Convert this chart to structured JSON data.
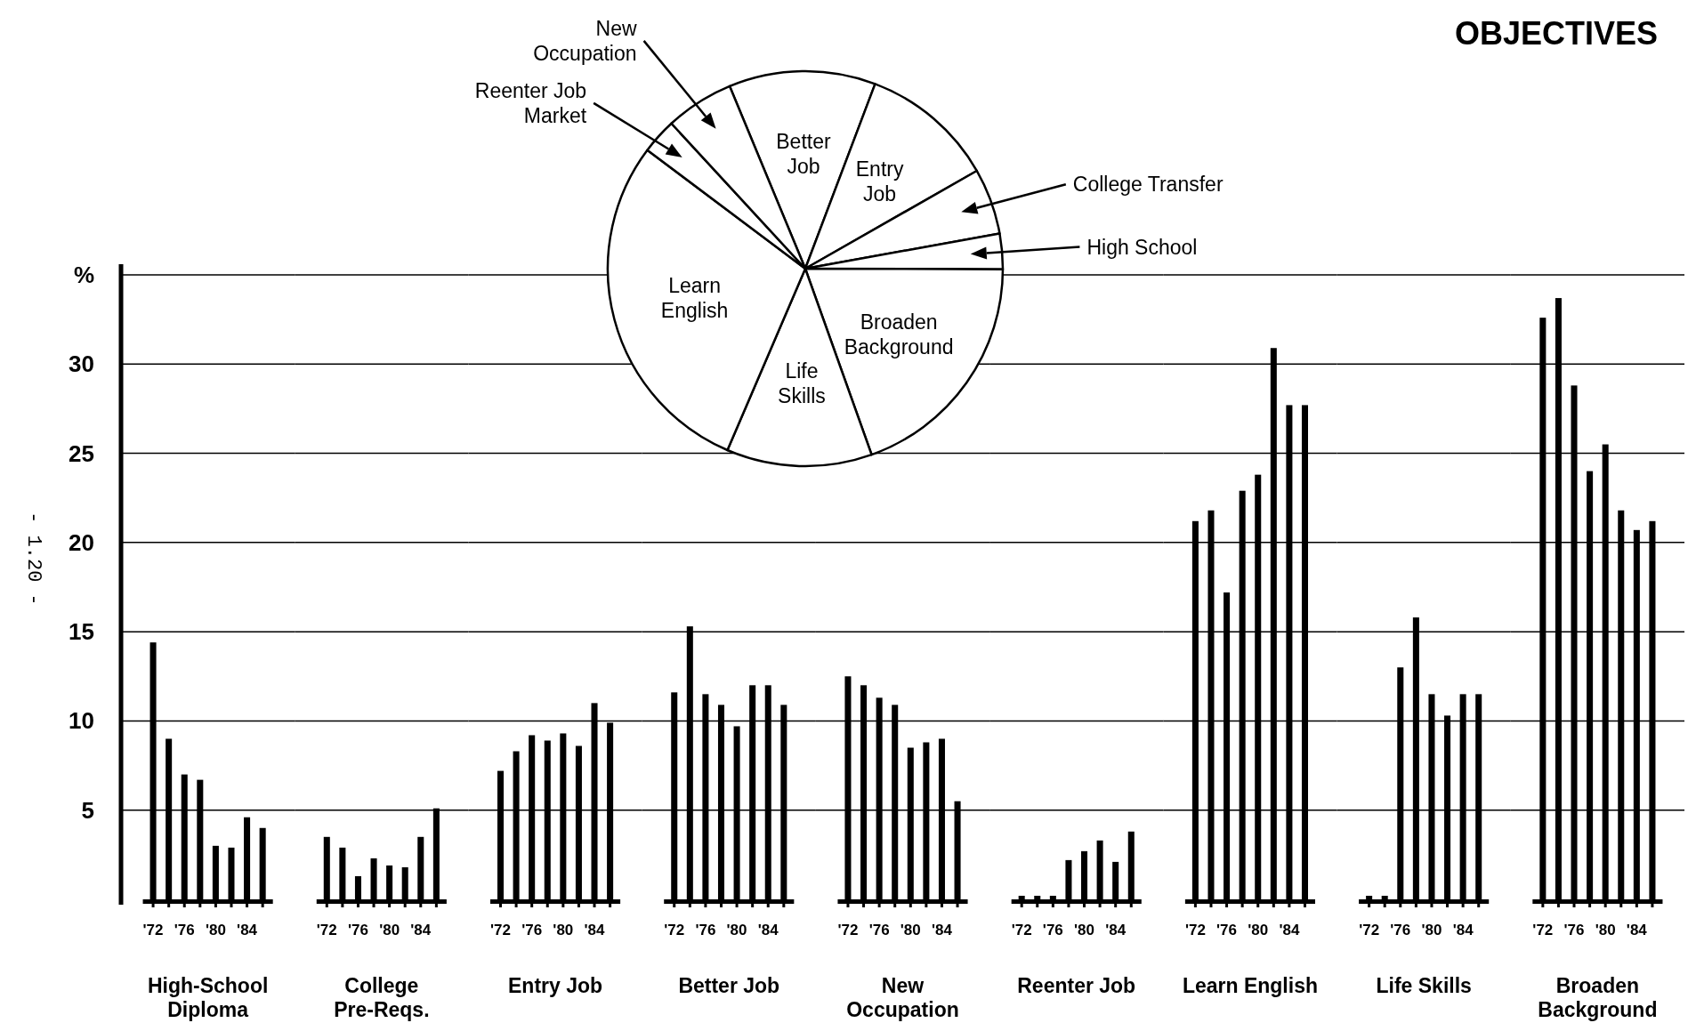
{
  "chart_data": [
    {
      "type": "pie",
      "title": "OBJECTIVES",
      "categories": [
        "Better Job",
        "Entry Job",
        "College Transfer",
        "High School",
        "Broaden Background",
        "Life Skills",
        "Learn English",
        "Reenter Job Market",
        "New Occupation"
      ],
      "values": [
        12.0,
        11.0,
        5.4,
        2.9,
        19.5,
        11.9,
        28.8,
        2.9,
        5.6
      ],
      "colors": [
        "#ffffff",
        "#ffffff",
        "#ffffff",
        "#ffffff",
        "#ffffff",
        "#ffffff",
        "#ffffff",
        "#ffffff",
        "#ffffff"
      ]
    },
    {
      "type": "bar",
      "xlabel": "High-School Diploma",
      "categories": [
        "'72",
        null,
        "'76",
        null,
        "'80",
        null,
        "'84",
        null
      ],
      "values": [
        14.4,
        9.0,
        7.0,
        6.7,
        3.0,
        2.9,
        4.6,
        4.0
      ],
      "color": "#000000",
      "ylim": [
        0,
        35
      ],
      "yticks": [
        5,
        10,
        15,
        20,
        25,
        30,
        {
          "value": 35,
          "label": "%"
        }
      ],
      "grid": "y",
      "annotations": [
        "- 1.20 -"
      ]
    },
    {
      "type": "bar",
      "xlabel": "College Pre-Reqs.",
      "categories": [
        "'72",
        null,
        "'76",
        null,
        "'80",
        null,
        "'84",
        null
      ],
      "values": [
        3.5,
        2.9,
        1.3,
        2.3,
        1.9,
        1.8,
        3.5,
        5.1
      ],
      "color": "#000000",
      "ylim": [
        0,
        35
      ],
      "yticks": [
        5,
        10,
        15,
        20,
        25,
        30,
        35
      ],
      "grid": "y",
      "tick_labels": "x"
    },
    {
      "type": "bar",
      "xlabel": "Entry Job",
      "categories": [
        "'72",
        null,
        "'76",
        null,
        "'80",
        null,
        "'84",
        null
      ],
      "values": [
        7.2,
        8.3,
        9.2,
        8.9,
        9.3,
        8.6,
        11.0,
        9.9
      ],
      "color": "#000000",
      "ylim": [
        0,
        35
      ],
      "yticks": [
        5,
        10,
        15,
        20,
        25,
        30,
        35
      ],
      "grid": "y",
      "tick_labels": "x"
    },
    {
      "type": "bar",
      "xlabel": "Better Job",
      "categories": [
        "'72",
        null,
        "'76",
        null,
        "'80",
        null,
        "'84",
        null
      ],
      "values": [
        11.6,
        15.3,
        11.5,
        10.9,
        9.7,
        12.0,
        12.0,
        10.9
      ],
      "color": "#000000",
      "ylim": [
        0,
        35
      ],
      "yticks": [
        5,
        10,
        15,
        20,
        25,
        30,
        35
      ],
      "grid": "y",
      "tick_labels": "x"
    },
    {
      "type": "bar",
      "xlabel": "New Occupation",
      "categories": [
        "'72",
        null,
        "'76",
        null,
        "'80",
        null,
        "'84",
        null
      ],
      "values": [
        12.5,
        12.0,
        11.3,
        10.9,
        8.5,
        8.8,
        9.0,
        5.5
      ],
      "color": "#000000",
      "ylim": [
        0,
        35
      ],
      "yticks": [
        5,
        10,
        15,
        20,
        25,
        30,
        35
      ],
      "grid": "y",
      "tick_labels": "x"
    },
    {
      "type": "bar",
      "xlabel": "Reenter Job",
      "categories": [
        "'72",
        null,
        "'76",
        null,
        "'80",
        null,
        "'84",
        null
      ],
      "values": [
        0.2,
        0.2,
        0.2,
        2.2,
        2.7,
        3.3,
        2.1,
        3.8
      ],
      "color": "#000000",
      "ylim": [
        0,
        35
      ],
      "yticks": [
        5,
        10,
        15,
        20,
        25,
        30,
        35
      ],
      "grid": "y",
      "tick_labels": "x"
    },
    {
      "type": "bar",
      "xlabel": "Learn English",
      "categories": [
        "'72",
        null,
        "'76",
        null,
        "'80",
        null,
        "'84",
        null
      ],
      "values": [
        21.2,
        21.8,
        17.2,
        22.9,
        23.8,
        30.9,
        27.7,
        27.7
      ],
      "color": "#000000",
      "ylim": [
        0,
        35
      ],
      "yticks": [
        5,
        10,
        15,
        20,
        25,
        30,
        35
      ],
      "grid": "y",
      "tick_labels": "x"
    },
    {
      "type": "bar",
      "xlabel": "Life Skills",
      "categories": [
        "'72",
        null,
        "'76",
        null,
        "'80",
        null,
        "'84",
        null
      ],
      "values": [
        0.2,
        0.2,
        13.0,
        15.8,
        11.5,
        10.3,
        11.5,
        11.5
      ],
      "color": "#000000",
      "ylim": [
        0,
        35
      ],
      "yticks": [
        5,
        10,
        15,
        20,
        25,
        30,
        35
      ],
      "grid": "y",
      "tick_labels": "x"
    },
    {
      "type": "bar",
      "xlabel": "Broaden Background",
      "categories": [
        "'72",
        null,
        "'76",
        null,
        "'80",
        null,
        "'84",
        null
      ],
      "values": [
        32.6,
        33.7,
        28.8,
        24.0,
        25.5,
        21.8,
        20.7,
        21.2
      ],
      "color": "#000000",
      "ylim": [
        0,
        35
      ],
      "yticks": [
        5,
        10,
        15,
        20,
        25,
        30,
        35
      ],
      "grid": "y",
      "tick_labels": "x"
    }
  ]
}
